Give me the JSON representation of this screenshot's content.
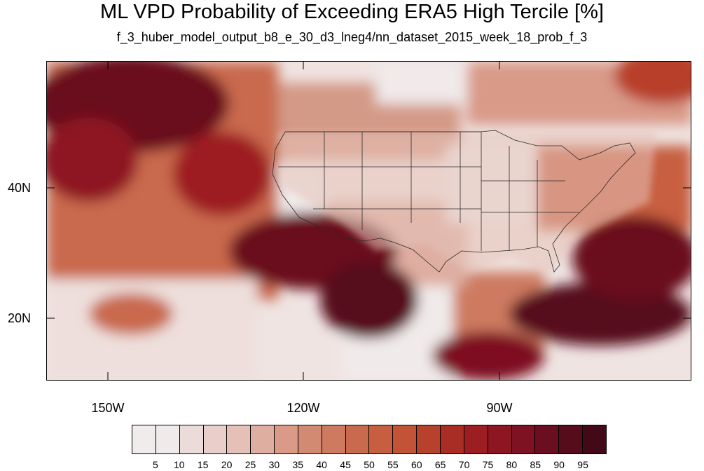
{
  "title": "ML VPD Probability of Exceeding ERA5 High Tercile [%]",
  "subtitle": "f_3_huber_model_output_b8_e_30_d3_lneg4/nn_dataset_2015_week_18_prob_f_3",
  "map": {
    "lat_labels": [
      "40N",
      "20N"
    ],
    "lon_labels": [
      "150W",
      "120W",
      "90W"
    ]
  },
  "colorbar": {
    "labels": [
      "5",
      "10",
      "15",
      "20",
      "25",
      "30",
      "35",
      "40",
      "45",
      "50",
      "55",
      "60",
      "65",
      "70",
      "75",
      "80",
      "85",
      "90",
      "95"
    ],
    "colors": [
      "#f0eaea",
      "#ecdcd9",
      "#e8cfc9",
      "#e5c0b7",
      "#deaea1",
      "#d99a88",
      "#d38a73",
      "#cd7a60",
      "#c9694d",
      "#c75e40",
      "#c35336",
      "#b8412c",
      "#a92c25",
      "#9d1e22",
      "#8e1623",
      "#7e1122",
      "#6b0e1f",
      "#570c1b",
      "#420a16"
    ]
  }
}
